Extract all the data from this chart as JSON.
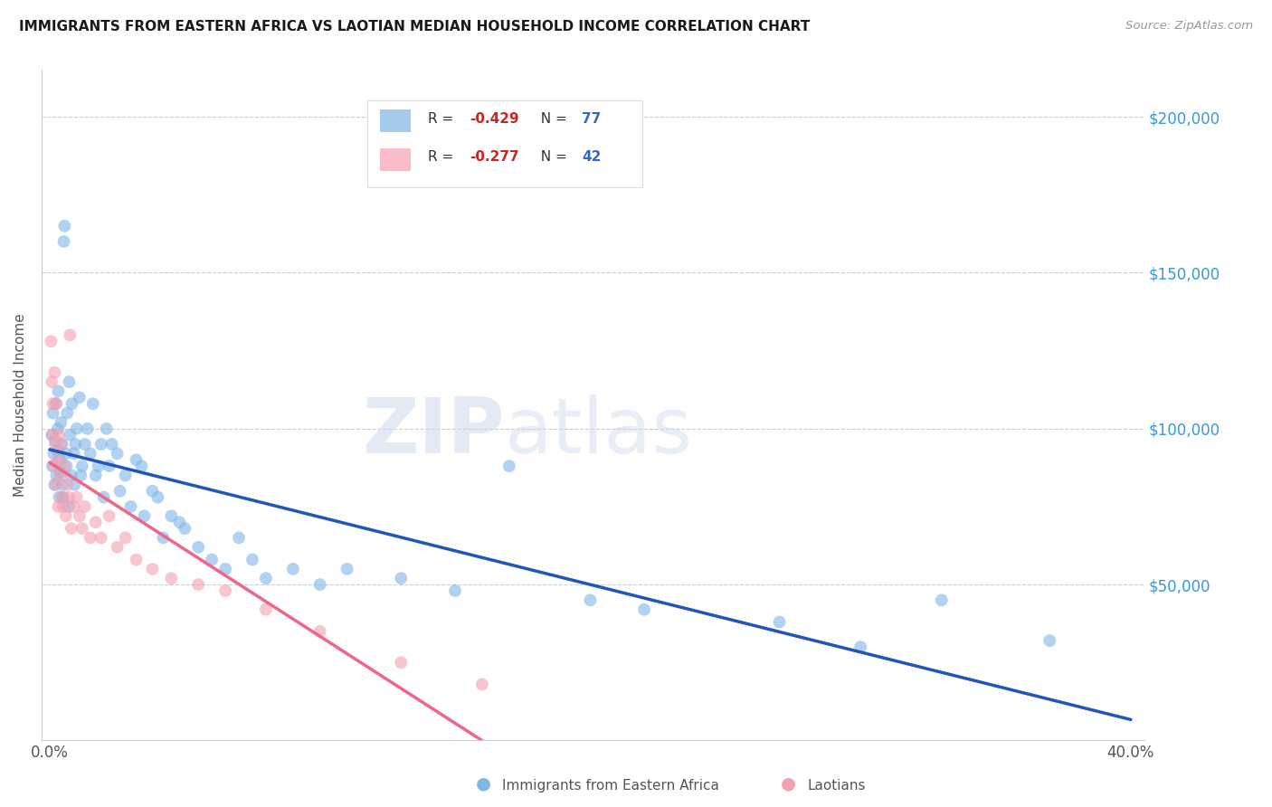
{
  "title": "IMMIGRANTS FROM EASTERN AFRICA VS LAOTIAN MEDIAN HOUSEHOLD INCOME CORRELATION CHART",
  "source": "Source: ZipAtlas.com",
  "ylabel": "Median Household Income",
  "y_ticks": [
    0,
    50000,
    100000,
    150000,
    200000
  ],
  "y_tick_labels": [
    "",
    "$50,000",
    "$100,000",
    "$150,000",
    "$200,000"
  ],
  "x_range": [
    0.0,
    0.4
  ],
  "y_range": [
    0,
    215000
  ],
  "blue_R": -0.429,
  "blue_N": 77,
  "pink_R": -0.277,
  "pink_N": 42,
  "blue_color": "#7EB6E8",
  "pink_color": "#F4A0B0",
  "blue_line_color": "#2255BB",
  "pink_line_color": "#EE6688",
  "watermark_zip": "ZIP",
  "watermark_atlas": "atlas",
  "legend_label_blue": "Immigrants from Eastern Africa",
  "legend_label_pink": "Laotians",
  "blue_x": [
    0.0008,
    0.001,
    0.0012,
    0.0015,
    0.0018,
    0.002,
    0.0022,
    0.0025,
    0.0028,
    0.003,
    0.0032,
    0.0035,
    0.0038,
    0.004,
    0.0042,
    0.0045,
    0.0048,
    0.005,
    0.0052,
    0.0055,
    0.006,
    0.0062,
    0.0065,
    0.007,
    0.0072,
    0.0075,
    0.008,
    0.0082,
    0.009,
    0.0092,
    0.0095,
    0.01,
    0.011,
    0.0115,
    0.012,
    0.013,
    0.014,
    0.015,
    0.016,
    0.017,
    0.018,
    0.019,
    0.02,
    0.021,
    0.022,
    0.023,
    0.025,
    0.026,
    0.028,
    0.03,
    0.032,
    0.034,
    0.035,
    0.038,
    0.04,
    0.042,
    0.045,
    0.048,
    0.05,
    0.055,
    0.06,
    0.065,
    0.07,
    0.075,
    0.08,
    0.09,
    0.1,
    0.11,
    0.13,
    0.15,
    0.17,
    0.2,
    0.22,
    0.27,
    0.3,
    0.33,
    0.37
  ],
  "blue_y": [
    98000,
    88000,
    105000,
    92000,
    82000,
    96000,
    108000,
    85000,
    93000,
    100000,
    112000,
    78000,
    90000,
    86000,
    102000,
    95000,
    82000,
    78000,
    160000,
    165000,
    92000,
    88000,
    105000,
    75000,
    115000,
    98000,
    85000,
    108000,
    92000,
    82000,
    95000,
    100000,
    110000,
    85000,
    88000,
    95000,
    100000,
    92000,
    108000,
    85000,
    88000,
    95000,
    78000,
    100000,
    88000,
    95000,
    92000,
    80000,
    85000,
    75000,
    90000,
    88000,
    72000,
    80000,
    78000,
    65000,
    72000,
    70000,
    68000,
    62000,
    58000,
    55000,
    65000,
    58000,
    52000,
    55000,
    50000,
    55000,
    52000,
    48000,
    88000,
    45000,
    42000,
    38000,
    30000,
    45000,
    32000
  ],
  "pink_x": [
    0.0005,
    0.0008,
    0.001,
    0.0012,
    0.0015,
    0.0018,
    0.002,
    0.0022,
    0.0025,
    0.003,
    0.0032,
    0.0035,
    0.004,
    0.0042,
    0.0045,
    0.005,
    0.0055,
    0.006,
    0.0065,
    0.007,
    0.0075,
    0.008,
    0.009,
    0.01,
    0.011,
    0.012,
    0.013,
    0.015,
    0.017,
    0.019,
    0.022,
    0.025,
    0.028,
    0.032,
    0.038,
    0.045,
    0.055,
    0.065,
    0.08,
    0.1,
    0.13,
    0.16
  ],
  "pink_y": [
    128000,
    115000,
    98000,
    108000,
    88000,
    118000,
    95000,
    82000,
    108000,
    90000,
    75000,
    98000,
    85000,
    95000,
    78000,
    75000,
    88000,
    72000,
    82000,
    78000,
    130000,
    68000,
    75000,
    78000,
    72000,
    68000,
    75000,
    65000,
    70000,
    65000,
    72000,
    62000,
    65000,
    58000,
    55000,
    52000,
    50000,
    48000,
    42000,
    35000,
    25000,
    18000
  ]
}
